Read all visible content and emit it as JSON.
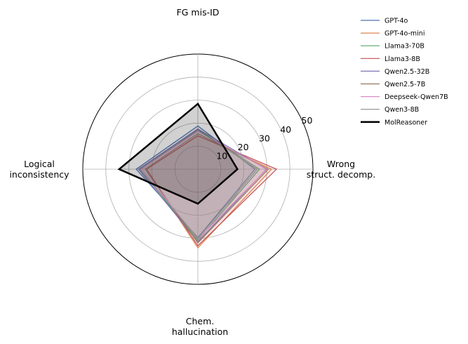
{
  "chart_data": {
    "type": "radar",
    "title": "",
    "axes": [
      "FG mis-ID",
      "Wrong\nstruct. decomp.",
      "Chem.\nhallucination",
      "Logical\ninconsistency"
    ],
    "r_ticks": [
      10,
      20,
      30,
      40,
      50
    ],
    "r_max": 50,
    "series": [
      {
        "name": "GPT-4o",
        "color": "#4c72b0",
        "values": [
          18.8,
          24.8,
          29.7,
          26.8
        ]
      },
      {
        "name": "GPT-4o-mini",
        "color": "#dd8452",
        "values": [
          14.7,
          32.0,
          34.2,
          22.3
        ]
      },
      {
        "name": "Llama3-70B",
        "color": "#55a868",
        "values": [
          17.3,
          26.8,
          30.8,
          25.2
        ]
      },
      {
        "name": "Llama3-8B",
        "color": "#c44e52",
        "values": [
          14.5,
          34.2,
          33.3,
          22.3
        ]
      },
      {
        "name": "Qwen2.5-32B",
        "color": "#8172b3",
        "values": [
          17.5,
          29.8,
          31.5,
          25.8
        ]
      },
      {
        "name": "Qwen2.5-7B",
        "color": "#937860",
        "values": [
          15.5,
          30.6,
          32.0,
          23.0
        ]
      },
      {
        "name": "Deepseek-Qwen7B",
        "color": "#da8bc3",
        "values": [
          16.5,
          30.0,
          30.3,
          24.3
        ]
      },
      {
        "name": "Qwen3-8B",
        "color": "#8c8c8c",
        "values": [
          17.0,
          25.8,
          30.0,
          25.2
        ]
      },
      {
        "name": "MolReasoner",
        "color": "#000000",
        "values": [
          28.4,
          17.2,
          15.0,
          34.2
        ]
      }
    ],
    "legend_position": "upper-right outside"
  }
}
